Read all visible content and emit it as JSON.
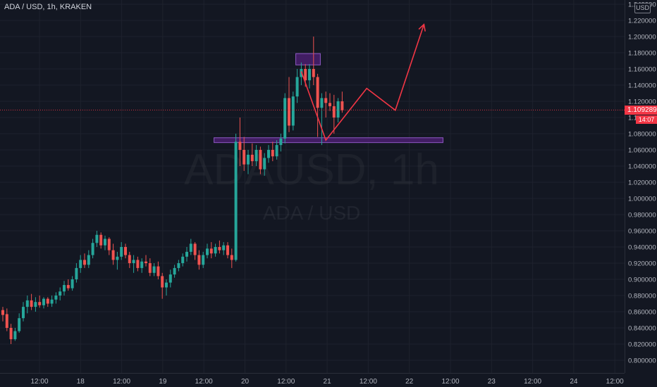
{
  "legend": {
    "title": "ADA / USD, 1h, KRAKEN"
  },
  "watermark": {
    "main": "ADAUSD, 1h",
    "sub": "ADA / USD"
  },
  "currency_label": "USD",
  "colors": {
    "up": "#26a69a",
    "down": "#ef5350",
    "drawing": "#f23645",
    "zone_fill": "#4a1f6e",
    "zone_border": "#8e58c4",
    "background": "#131722"
  },
  "price_axis": {
    "ticks": [
      "1.240000",
      "1.220000",
      "1.200000",
      "1.180000",
      "1.160000",
      "1.140000",
      "1.120000",
      "1.100000",
      "1.080000",
      "1.060000",
      "1.040000",
      "1.020000",
      "1.000000",
      "0.980000",
      "0.960000",
      "0.940000",
      "0.920000",
      "0.900000",
      "0.880000",
      "0.860000",
      "0.840000",
      "0.820000",
      "0.800000"
    ],
    "current_price": "1.109289",
    "countdown": "14:07"
  },
  "time_axis": {
    "labels": [
      "12:00",
      "18",
      "12:00",
      "19",
      "12:00",
      "20",
      "12:00",
      "21",
      "12:00",
      "22",
      "12:00",
      "23",
      "12:00",
      "24",
      "12:00"
    ]
  },
  "chart_data": {
    "type": "candlestick",
    "symbol": "ADA / USD",
    "interval": "1h",
    "exchange": "KRAKEN",
    "ylim": [
      0.79,
      1.25
    ],
    "candles": [
      {
        "o": 0.862,
        "h": 0.866,
        "l": 0.848,
        "c": 0.856
      },
      {
        "o": 0.857,
        "h": 0.864,
        "l": 0.836,
        "c": 0.84
      },
      {
        "o": 0.84,
        "h": 0.845,
        "l": 0.82,
        "c": 0.826
      },
      {
        "o": 0.826,
        "h": 0.84,
        "l": 0.824,
        "c": 0.836
      },
      {
        "o": 0.836,
        "h": 0.858,
        "l": 0.834,
        "c": 0.852
      },
      {
        "o": 0.852,
        "h": 0.872,
        "l": 0.848,
        "c": 0.866
      },
      {
        "o": 0.866,
        "h": 0.88,
        "l": 0.858,
        "c": 0.874
      },
      {
        "o": 0.874,
        "h": 0.882,
        "l": 0.862,
        "c": 0.866
      },
      {
        "o": 0.866,
        "h": 0.878,
        "l": 0.86,
        "c": 0.872
      },
      {
        "o": 0.872,
        "h": 0.88,
        "l": 0.865,
        "c": 0.868
      },
      {
        "o": 0.868,
        "h": 0.878,
        "l": 0.864,
        "c": 0.876
      },
      {
        "o": 0.876,
        "h": 0.878,
        "l": 0.866,
        "c": 0.87
      },
      {
        "o": 0.87,
        "h": 0.88,
        "l": 0.866,
        "c": 0.875
      },
      {
        "o": 0.875,
        "h": 0.884,
        "l": 0.87,
        "c": 0.88
      },
      {
        "o": 0.88,
        "h": 0.89,
        "l": 0.874,
        "c": 0.885
      },
      {
        "o": 0.885,
        "h": 0.898,
        "l": 0.88,
        "c": 0.893
      },
      {
        "o": 0.893,
        "h": 0.9,
        "l": 0.886,
        "c": 0.889
      },
      {
        "o": 0.889,
        "h": 0.904,
        "l": 0.886,
        "c": 0.9
      },
      {
        "o": 0.9,
        "h": 0.92,
        "l": 0.896,
        "c": 0.914
      },
      {
        "o": 0.914,
        "h": 0.93,
        "l": 0.908,
        "c": 0.924
      },
      {
        "o": 0.924,
        "h": 0.932,
        "l": 0.914,
        "c": 0.918
      },
      {
        "o": 0.918,
        "h": 0.936,
        "l": 0.914,
        "c": 0.93
      },
      {
        "o": 0.93,
        "h": 0.95,
        "l": 0.926,
        "c": 0.945
      },
      {
        "o": 0.945,
        "h": 0.96,
        "l": 0.94,
        "c": 0.955
      },
      {
        "o": 0.955,
        "h": 0.958,
        "l": 0.938,
        "c": 0.942
      },
      {
        "o": 0.942,
        "h": 0.954,
        "l": 0.936,
        "c": 0.95
      },
      {
        "o": 0.95,
        "h": 0.952,
        "l": 0.93,
        "c": 0.936
      },
      {
        "o": 0.936,
        "h": 0.944,
        "l": 0.918,
        "c": 0.924
      },
      {
        "o": 0.924,
        "h": 0.934,
        "l": 0.912,
        "c": 0.928
      },
      {
        "o": 0.928,
        "h": 0.946,
        "l": 0.924,
        "c": 0.94
      },
      {
        "o": 0.94,
        "h": 0.944,
        "l": 0.926,
        "c": 0.93
      },
      {
        "o": 0.93,
        "h": 0.934,
        "l": 0.914,
        "c": 0.92
      },
      {
        "o": 0.92,
        "h": 0.93,
        "l": 0.908,
        "c": 0.924
      },
      {
        "o": 0.924,
        "h": 0.928,
        "l": 0.91,
        "c": 0.914
      },
      {
        "o": 0.914,
        "h": 0.926,
        "l": 0.908,
        "c": 0.922
      },
      {
        "o": 0.922,
        "h": 0.93,
        "l": 0.916,
        "c": 0.92
      },
      {
        "o": 0.92,
        "h": 0.926,
        "l": 0.904,
        "c": 0.908
      },
      {
        "o": 0.908,
        "h": 0.92,
        "l": 0.904,
        "c": 0.916
      },
      {
        "o": 0.916,
        "h": 0.922,
        "l": 0.9,
        "c": 0.904
      },
      {
        "o": 0.904,
        "h": 0.908,
        "l": 0.876,
        "c": 0.89
      },
      {
        "o": 0.89,
        "h": 0.9,
        "l": 0.88,
        "c": 0.896
      },
      {
        "o": 0.896,
        "h": 0.912,
        "l": 0.89,
        "c": 0.906
      },
      {
        "o": 0.906,
        "h": 0.918,
        "l": 0.902,
        "c": 0.914
      },
      {
        "o": 0.914,
        "h": 0.924,
        "l": 0.91,
        "c": 0.92
      },
      {
        "o": 0.92,
        "h": 0.932,
        "l": 0.916,
        "c": 0.928
      },
      {
        "o": 0.928,
        "h": 0.94,
        "l": 0.922,
        "c": 0.934
      },
      {
        "o": 0.934,
        "h": 0.95,
        "l": 0.93,
        "c": 0.944
      },
      {
        "o": 0.944,
        "h": 0.946,
        "l": 0.924,
        "c": 0.93
      },
      {
        "o": 0.93,
        "h": 0.936,
        "l": 0.912,
        "c": 0.918
      },
      {
        "o": 0.918,
        "h": 0.934,
        "l": 0.914,
        "c": 0.93
      },
      {
        "o": 0.93,
        "h": 0.944,
        "l": 0.926,
        "c": 0.938
      },
      {
        "o": 0.938,
        "h": 0.946,
        "l": 0.926,
        "c": 0.932
      },
      {
        "o": 0.932,
        "h": 0.944,
        "l": 0.928,
        "c": 0.94
      },
      {
        "o": 0.94,
        "h": 0.948,
        "l": 0.932,
        "c": 0.936
      },
      {
        "o": 0.936,
        "h": 0.946,
        "l": 0.93,
        "c": 0.942
      },
      {
        "o": 0.942,
        "h": 0.946,
        "l": 0.926,
        "c": 0.93
      },
      {
        "o": 0.93,
        "h": 0.938,
        "l": 0.914,
        "c": 0.924
      },
      {
        "o": 0.924,
        "h": 1.08,
        "l": 0.922,
        "c": 1.07
      },
      {
        "o": 1.07,
        "h": 1.1,
        "l": 1.04,
        "c": 1.06
      },
      {
        "o": 1.06,
        "h": 1.076,
        "l": 1.034,
        "c": 1.042
      },
      {
        "o": 1.042,
        "h": 1.06,
        "l": 1.03,
        "c": 1.054
      },
      {
        "o": 1.054,
        "h": 1.068,
        "l": 1.04,
        "c": 1.046
      },
      {
        "o": 1.046,
        "h": 1.066,
        "l": 1.04,
        "c": 1.06
      },
      {
        "o": 1.06,
        "h": 1.064,
        "l": 1.03,
        "c": 1.036
      },
      {
        "o": 1.036,
        "h": 1.056,
        "l": 1.028,
        "c": 1.05
      },
      {
        "o": 1.05,
        "h": 1.066,
        "l": 1.044,
        "c": 1.06
      },
      {
        "o": 1.06,
        "h": 1.07,
        "l": 1.046,
        "c": 1.052
      },
      {
        "o": 1.052,
        "h": 1.072,
        "l": 1.048,
        "c": 1.066
      },
      {
        "o": 1.066,
        "h": 1.08,
        "l": 1.058,
        "c": 1.074
      },
      {
        "o": 1.074,
        "h": 1.13,
        "l": 1.068,
        "c": 1.124
      },
      {
        "o": 1.124,
        "h": 1.15,
        "l": 1.082,
        "c": 1.09
      },
      {
        "o": 1.09,
        "h": 1.132,
        "l": 1.084,
        "c": 1.126
      },
      {
        "o": 1.126,
        "h": 1.16,
        "l": 1.118,
        "c": 1.15
      },
      {
        "o": 1.15,
        "h": 1.168,
        "l": 1.14,
        "c": 1.16
      },
      {
        "o": 1.16,
        "h": 1.166,
        "l": 1.138,
        "c": 1.146
      },
      {
        "o": 1.146,
        "h": 1.166,
        "l": 1.136,
        "c": 1.16
      },
      {
        "o": 1.16,
        "h": 1.2,
        "l": 1.14,
        "c": 1.15
      },
      {
        "o": 1.15,
        "h": 1.154,
        "l": 1.076,
        "c": 1.112
      },
      {
        "o": 1.112,
        "h": 1.13,
        "l": 1.066,
        "c": 1.124
      },
      {
        "o": 1.124,
        "h": 1.132,
        "l": 1.1,
        "c": 1.118
      },
      {
        "o": 1.118,
        "h": 1.13,
        "l": 1.108,
        "c": 1.114
      },
      {
        "o": 1.114,
        "h": 1.128,
        "l": 1.08,
        "c": 1.1
      },
      {
        "o": 1.1,
        "h": 1.124,
        "l": 1.094,
        "c": 1.12
      },
      {
        "o": 1.12,
        "h": 1.132,
        "l": 1.106,
        "c": 1.109
      }
    ],
    "zones": [
      {
        "from_candle": 72,
        "to_candle": 78,
        "top": 1.179,
        "bottom": 1.165
      },
      {
        "from_candle": 52,
        "to_candle": 108,
        "top": 1.075,
        "bottom": 1.069
      }
    ],
    "projection_path": [
      {
        "candle": 73,
        "price": 1.157
      },
      {
        "candle": 79,
        "price": 1.072
      },
      {
        "candle": 89,
        "price": 1.136
      },
      {
        "candle": 96,
        "price": 1.109
      },
      {
        "candle": 103,
        "price": 1.215
      }
    ]
  }
}
